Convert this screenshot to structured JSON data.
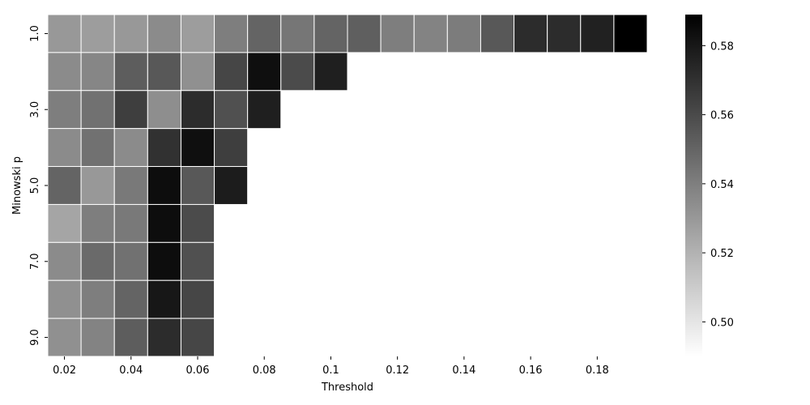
{
  "chart_data": {
    "type": "heatmap",
    "title": "",
    "xlabel": "Threshold",
    "ylabel": "Minowski p",
    "x_categories": [
      0.02,
      0.03,
      0.04,
      0.05,
      0.06,
      0.07,
      0.08,
      0.09,
      0.1,
      0.11,
      0.12,
      0.13,
      0.14,
      0.15,
      0.16,
      0.17,
      0.18,
      0.19
    ],
    "y_categories": [
      1.0,
      2.0,
      3.0,
      4.0,
      5.0,
      6.0,
      7.0,
      8.0,
      9.0
    ],
    "x_tick_labels": [
      "0.02",
      "0.04",
      "0.06",
      "0.08",
      "0.1",
      "0.12",
      "0.14",
      "0.16",
      "0.18"
    ],
    "x_tick_categories": [
      0.02,
      0.04,
      0.06,
      0.08,
      0.1,
      0.12,
      0.14,
      0.16,
      0.18
    ],
    "y_tick_labels": [
      "1.0",
      "3.0",
      "5.0",
      "7.0",
      "9.0"
    ],
    "y_tick_categories": [
      1.0,
      3.0,
      5.0,
      7.0,
      9.0
    ],
    "values": [
      [
        0.53,
        0.528,
        0.53,
        0.535,
        0.528,
        0.54,
        0.55,
        0.543,
        0.55,
        0.552,
        0.54,
        0.538,
        0.541,
        0.555,
        0.572,
        0.572,
        0.576,
        0.589
      ],
      [
        0.535,
        0.537,
        0.553,
        0.555,
        0.533,
        0.562,
        0.583,
        0.56,
        0.577,
        null,
        null,
        null,
        null,
        null,
        null,
        null,
        null,
        null
      ],
      [
        0.54,
        0.545,
        0.565,
        0.534,
        0.572,
        0.558,
        0.577,
        null,
        null,
        null,
        null,
        null,
        null,
        null,
        null,
        null,
        null,
        null
      ],
      [
        0.535,
        0.545,
        0.535,
        0.57,
        0.583,
        0.565,
        null,
        null,
        null,
        null,
        null,
        null,
        null,
        null,
        null,
        null,
        null,
        null
      ],
      [
        0.55,
        0.53,
        0.542,
        0.584,
        0.555,
        0.578,
        null,
        null,
        null,
        null,
        null,
        null,
        null,
        null,
        null,
        null,
        null,
        null
      ],
      [
        0.525,
        0.54,
        0.542,
        0.584,
        0.56,
        null,
        null,
        null,
        null,
        null,
        null,
        null,
        null,
        null,
        null,
        null,
        null,
        null
      ],
      [
        0.535,
        0.548,
        0.545,
        0.584,
        0.558,
        null,
        null,
        null,
        null,
        null,
        null,
        null,
        null,
        null,
        null,
        null,
        null,
        null
      ],
      [
        0.533,
        0.54,
        0.55,
        0.58,
        0.562,
        null,
        null,
        null,
        null,
        null,
        null,
        null,
        null,
        null,
        null,
        null,
        null,
        null
      ],
      [
        0.533,
        0.538,
        0.553,
        0.572,
        0.562,
        null,
        null,
        null,
        null,
        null,
        null,
        null,
        null,
        null,
        null,
        null,
        null,
        null
      ]
    ],
    "colorbar": {
      "min": 0.49,
      "max": 0.589,
      "ticks": [
        0.5,
        0.52,
        0.54,
        0.56,
        0.58
      ],
      "tick_labels": [
        "0.50",
        "0.52",
        "0.54",
        "0.56",
        "0.58"
      ],
      "cmap": "Greys"
    }
  }
}
